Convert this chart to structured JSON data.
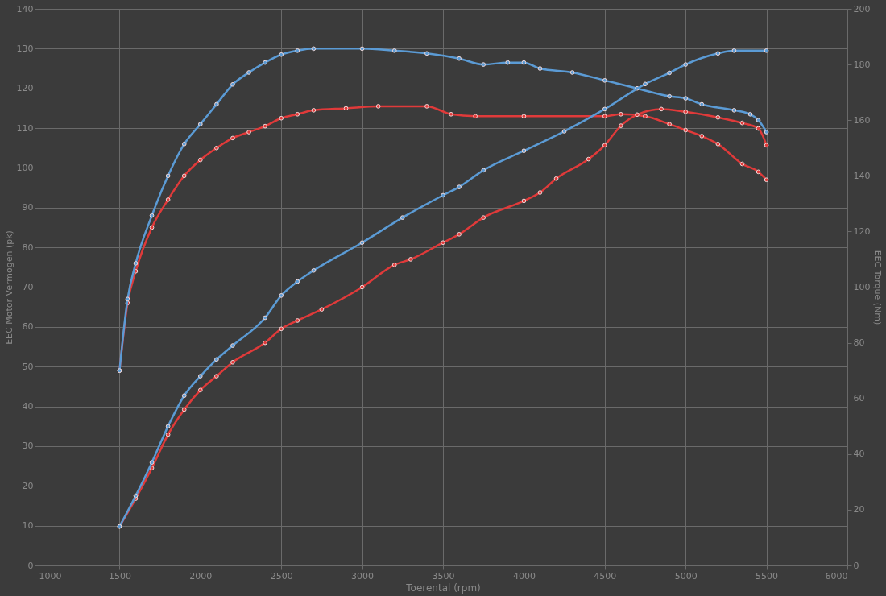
{
  "chart_data": {
    "type": "line",
    "xlabel": "Toerental (rpm)",
    "ylabel": "EEC Motor Vermogen (pk)",
    "y2label": "EEC Torque (Nm)",
    "xlim": [
      1000,
      6000
    ],
    "xticks": [
      1000,
      1500,
      2000,
      2500,
      3000,
      3500,
      4000,
      4500,
      5000,
      5500,
      6000
    ],
    "ylim": [
      0,
      140
    ],
    "yticks": [
      0,
      10,
      20,
      30,
      40,
      50,
      60,
      70,
      80,
      90,
      100,
      110,
      120,
      130,
      140
    ],
    "y2lim": [
      0,
      200
    ],
    "y2ticks": [
      0,
      20,
      40,
      60,
      80,
      100,
      120,
      140,
      160,
      180,
      200
    ],
    "grid": true,
    "marker": "circle",
    "line_style": "solid",
    "series": [
      {
        "color": "#e03a3a",
        "x": [
          1500,
          1550,
          1600,
          1700,
          1800,
          1900,
          2000,
          2100,
          2200,
          2300,
          2400,
          2500,
          2600,
          2700,
          2900,
          3100,
          3400,
          3550,
          3700,
          4000,
          4500,
          4600,
          4750,
          4900,
          5000,
          5100,
          5200,
          5350,
          5450,
          5500
        ],
        "values": [
          49,
          66,
          74,
          85,
          92,
          98,
          102,
          105,
          107.5,
          109,
          110.5,
          112.5,
          113.5,
          114.5,
          115,
          115.5,
          115.5,
          113.5,
          113,
          113,
          113,
          113.5,
          113,
          111,
          109.5,
          108,
          106,
          101,
          99,
          97
        ]
      },
      {
        "color": "#5b9bd5",
        "x": [
          1500,
          1550,
          1600,
          1700,
          1800,
          1900,
          2000,
          2100,
          2200,
          2300,
          2400,
          2500,
          2600,
          2700,
          3000,
          3200,
          3400,
          3600,
          3750,
          3900,
          4000,
          4100,
          4300,
          4500,
          4700,
          4900,
          5000,
          5100,
          5300,
          5400,
          5450,
          5500
        ],
        "values": [
          49,
          67,
          76,
          88,
          98,
          106,
          111,
          116,
          121,
          124,
          126.5,
          128.5,
          129.5,
          130,
          130,
          129.5,
          128.8,
          127.5,
          126,
          126.5,
          126.5,
          125,
          124,
          122,
          120,
          118,
          117.5,
          116,
          114.5,
          113.5,
          112,
          109
        ]
      },
      {
        "color": "#e03a3a",
        "axis": "y2",
        "x": [
          1500,
          1600,
          1700,
          1800,
          1900,
          2000,
          2100,
          2200,
          2400,
          2500,
          2600,
          2750,
          3000,
          3200,
          3300,
          3500,
          3600,
          3750,
          4000,
          4100,
          4200,
          4400,
          4500,
          4600,
          4700,
          4850,
          5000,
          5200,
          5350,
          5450,
          5500
        ],
        "values": [
          14,
          24,
          35,
          47,
          56,
          63,
          68,
          73,
          80,
          85,
          88,
          92,
          100,
          108,
          110,
          116,
          119,
          125,
          131,
          134,
          139,
          146,
          151,
          158,
          162,
          164,
          163,
          161,
          159,
          157,
          151
        ]
      },
      {
        "color": "#5b9bd5",
        "axis": "y2",
        "x": [
          1500,
          1600,
          1700,
          1800,
          1900,
          2000,
          2100,
          2200,
          2400,
          2500,
          2600,
          2700,
          3000,
          3250,
          3500,
          3600,
          3750,
          4000,
          4250,
          4500,
          4750,
          4900,
          5000,
          5200,
          5300,
          5500
        ],
        "values": [
          14,
          25,
          37,
          50,
          61,
          68,
          74,
          79,
          89,
          97,
          102,
          106,
          116,
          125,
          133,
          136,
          142,
          149,
          156,
          164,
          173,
          177,
          180,
          184,
          185,
          185
        ]
      }
    ]
  }
}
